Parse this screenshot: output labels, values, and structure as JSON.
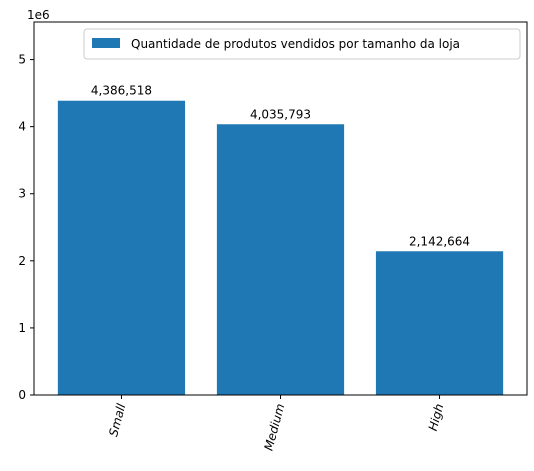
{
  "chart_data": {
    "type": "bar",
    "categories": [
      "Small",
      "Medium",
      "High"
    ],
    "series": [
      {
        "name": "Quantidade de produtos vendidos por tamanho da loja",
        "values": [
          4386518,
          4035793,
          2142664
        ],
        "labels": [
          "4,386,518",
          "4,035,793",
          "2,142,664"
        ]
      }
    ],
    "y_ticks": [
      0,
      1,
      2,
      3,
      4,
      5
    ],
    "y_tick_labels": [
      "0",
      "1",
      "2",
      "3",
      "4",
      "5"
    ],
    "y_offset_label": "1e6",
    "ylim": [
      0,
      5560000
    ],
    "xlabel": "",
    "ylabel": "",
    "title": "",
    "grid": false,
    "legend_position": "top-right",
    "x_tick_rotation": 75,
    "colors": {
      "bar": "#1f77b4",
      "axes": "#000000",
      "legend_border": "#cccccc"
    }
  }
}
